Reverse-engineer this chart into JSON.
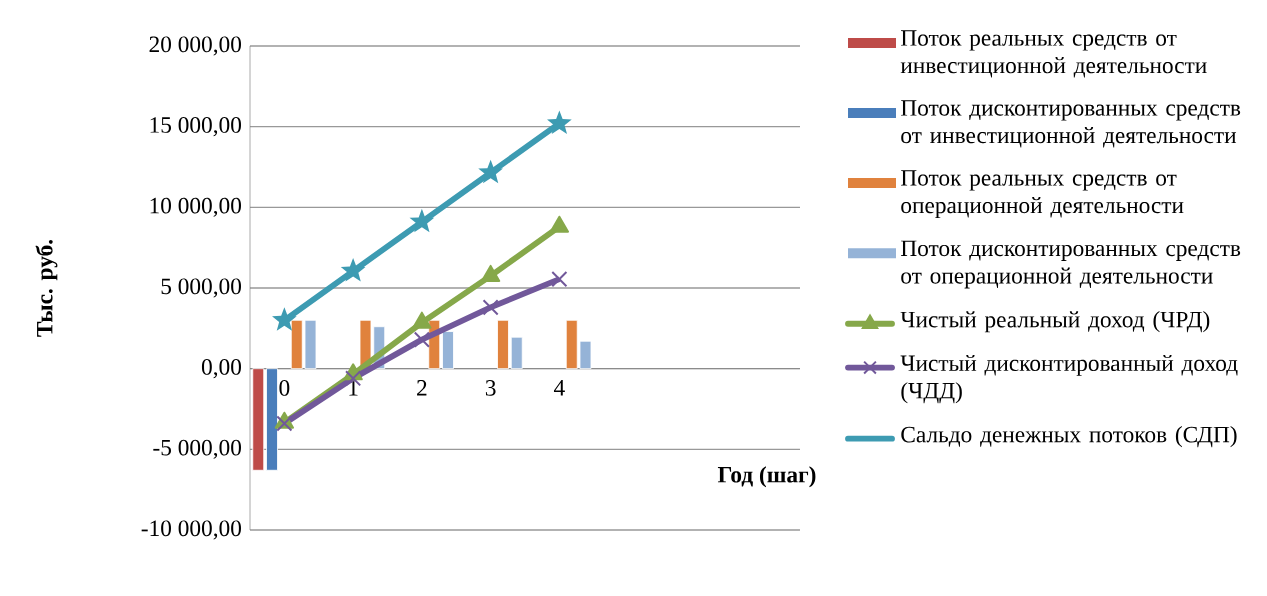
{
  "chart_data": {
    "type": "bar",
    "xlabel": "Год (шаг)",
    "ylabel": "Тыс. руб.",
    "categories": [
      "0",
      "1",
      "2",
      "3",
      "4",
      null,
      null,
      null
    ],
    "ylim": [
      -10000,
      20000
    ],
    "yticks": [
      {
        "value": -10000,
        "label": "-10 000,00"
      },
      {
        "value": -5000,
        "label": "-5 000,00"
      },
      {
        "value": 0,
        "label": "0,00"
      },
      {
        "value": 5000,
        "label": "5 000,00"
      },
      {
        "value": 10000,
        "label": "10 000,00"
      },
      {
        "value": 15000,
        "label": "15 000,00"
      },
      {
        "value": 20000,
        "label": "20 000,00"
      }
    ],
    "grid": "y",
    "legend": "right",
    "series": [
      {
        "name": "Поток реальных средств от инвестиционной деятельности",
        "color": "#be4b48",
        "values": [
          -6300,
          null,
          null,
          null,
          null,
          null,
          null,
          null
        ]
      },
      {
        "name": "Поток дисконтированных средств от инвестиционной деятельности",
        "color": "#4a7ebb",
        "values": [
          -6300,
          null,
          null,
          null,
          null,
          null,
          null,
          null
        ]
      },
      {
        "name": "Поток реальных средств от операционной деятельности",
        "color": "#e0823d",
        "values": [
          3000,
          3000,
          3000,
          3000,
          3000,
          null,
          null,
          null
        ]
      },
      {
        "name": "Поток дисконтированных средств от операционной деятельности",
        "color": "#95b3d7",
        "values": [
          3000,
          2600,
          2300,
          1950,
          1700,
          null,
          null,
          null
        ]
      },
      {
        "name": "Чистый реальный доход (ЧРД)",
        "type": "line",
        "color": "#86a84a",
        "marker": "triangle",
        "values": [
          -3350,
          -350,
          2850,
          5750,
          8800,
          null,
          null,
          null
        ]
      },
      {
        "name": "Чистый дисконтированный доход (ЧДД)",
        "type": "line",
        "color": "#71589a",
        "marker": "cross",
        "values": [
          -3400,
          -600,
          1800,
          3800,
          5550,
          null,
          null,
          null
        ]
      },
      {
        "name": "Сальдо денежных потоков (СДП)",
        "type": "line",
        "color": "#3d9bb2",
        "marker": "star",
        "values": [
          3000,
          6050,
          9100,
          12150,
          15200,
          null,
          null,
          null
        ]
      }
    ]
  }
}
